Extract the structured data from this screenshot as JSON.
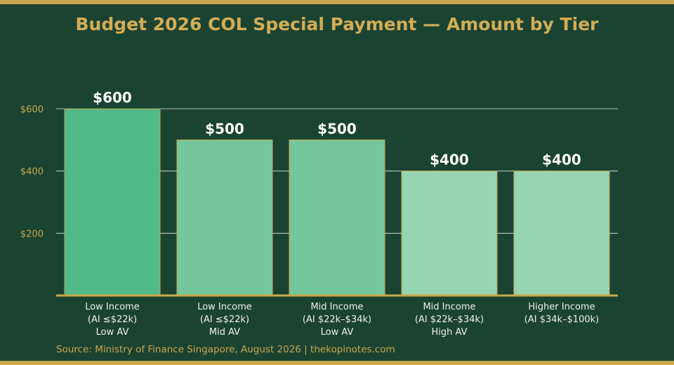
{
  "chart_data": {
    "type": "bar",
    "title": "Budget 2026 COL Special Payment — Amount by Tier",
    "categories": [
      [
        "Low Income",
        "(AI ≤$22k)",
        "Low AV"
      ],
      [
        "Low Income",
        "(AI ≤$22k)",
        "Mid AV"
      ],
      [
        "Mid Income",
        "(AI $22k–$34k)",
        "Low AV"
      ],
      [
        "Mid Income",
        "(AI $22k–$34k)",
        "High AV"
      ],
      [
        "Higher Income",
        "(AI $34k–$100k)"
      ]
    ],
    "values": [
      600,
      500,
      500,
      400,
      400
    ],
    "value_labels": [
      "$600",
      "$500",
      "$500",
      "$400",
      "$400"
    ],
    "bar_colors": [
      "#52b98a",
      "#74c69d",
      "#74c69d",
      "#95d5b2",
      "#95d5b2"
    ],
    "yticks": [
      200,
      400,
      600
    ],
    "ytick_labels": [
      "$200",
      "$400",
      "$600"
    ],
    "ylim": [
      0,
      600
    ],
    "grid": true,
    "xlabel": "",
    "ylabel": ""
  },
  "footer": {
    "source": "Source: Ministry of Finance Singapore, August 2026  |  thekopinotes.com"
  },
  "colors": {
    "background": "#1b4332",
    "accent": "#c9a84c",
    "title": "#d4ad55",
    "label_text": "#ffffff"
  }
}
